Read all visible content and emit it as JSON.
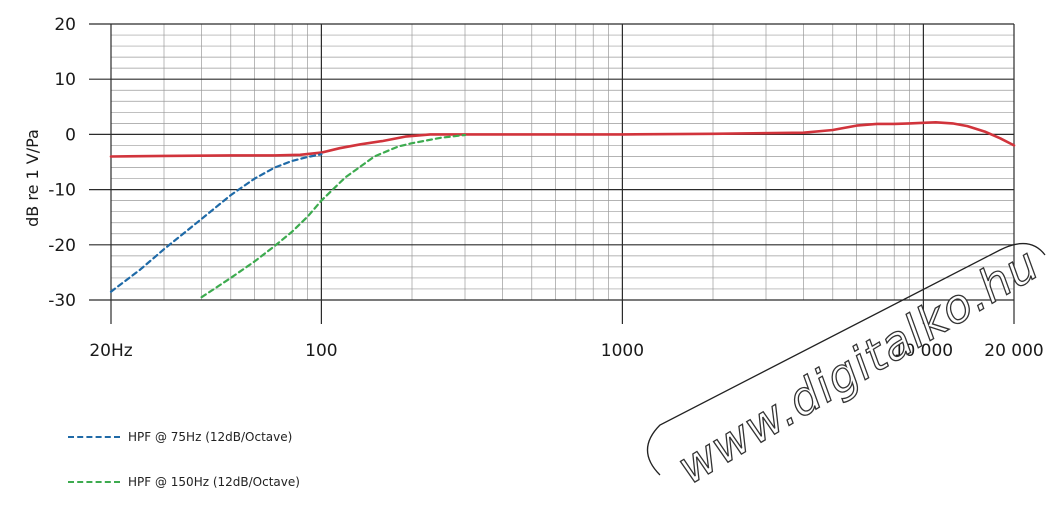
{
  "chart_data": {
    "type": "line",
    "title": "",
    "xlabel": "",
    "ylabel": "dB re 1 V/Pa",
    "xscale": "log",
    "xlim": [
      20,
      20000
    ],
    "ylim": [
      -30,
      20
    ],
    "grid": true,
    "x_tick_labels": [
      {
        "value": 20,
        "label": "20Hz"
      },
      {
        "value": 100,
        "label": "100"
      },
      {
        "value": 1000,
        "label": "1000"
      },
      {
        "value": 10000,
        "label": "10 000"
      },
      {
        "value": 20000,
        "label": "20 000"
      }
    ],
    "y_ticks": [
      20,
      10,
      0,
      -10,
      -20,
      -30
    ],
    "series": [
      {
        "name": "",
        "color": "#d1343c",
        "style": "solid",
        "x": [
          20,
          30,
          50,
          70,
          85,
          100,
          115,
          135,
          160,
          190,
          230,
          300,
          500,
          1000,
          2000,
          4000,
          5000,
          6000,
          7000,
          8000,
          9000,
          10000,
          11000,
          12500,
          14000,
          16000,
          18000,
          20000
        ],
        "y": [
          -4,
          -3.9,
          -3.8,
          -3.8,
          -3.7,
          -3.3,
          -2.5,
          -1.8,
          -1.2,
          -0.4,
          0,
          0,
          0,
          0,
          0.1,
          0.3,
          0.8,
          1.6,
          1.9,
          1.9,
          2,
          2.1,
          2.2,
          2.0,
          1.5,
          0.5,
          -0.7,
          -2
        ]
      },
      {
        "name": "HPF @ 75Hz (12dB/Octave)",
        "color": "#1f6aa7",
        "style": "dashed",
        "x": [
          20,
          25,
          30,
          40,
          50,
          60,
          70,
          80,
          90,
          100
        ],
        "y": [
          -28.5,
          -24.5,
          -20.8,
          -15.3,
          -11,
          -8,
          -6,
          -4.8,
          -4.1,
          -3.6
        ]
      },
      {
        "name": "HPF @ 150Hz (12dB/Octave)",
        "color": "#3dab4f",
        "style": "dashed",
        "x": [
          40,
          50,
          60,
          70,
          80,
          90,
          100,
          120,
          150,
          180,
          200,
          250,
          300
        ],
        "y": [
          -29.5,
          -26,
          -23,
          -20.2,
          -17.6,
          -14.9,
          -12,
          -7.8,
          -4,
          -2.2,
          -1.6,
          -0.6,
          -0.1
        ]
      }
    ]
  },
  "legend": {
    "items": [
      {
        "label": "HPF @ 75Hz (12dB/Octave)",
        "color": "#1f6aa7"
      },
      {
        "label": "HPF @ 150Hz (12dB/Octave)",
        "color": "#3dab4f"
      }
    ]
  },
  "watermark": {
    "text": "www.digitalko.hu"
  }
}
